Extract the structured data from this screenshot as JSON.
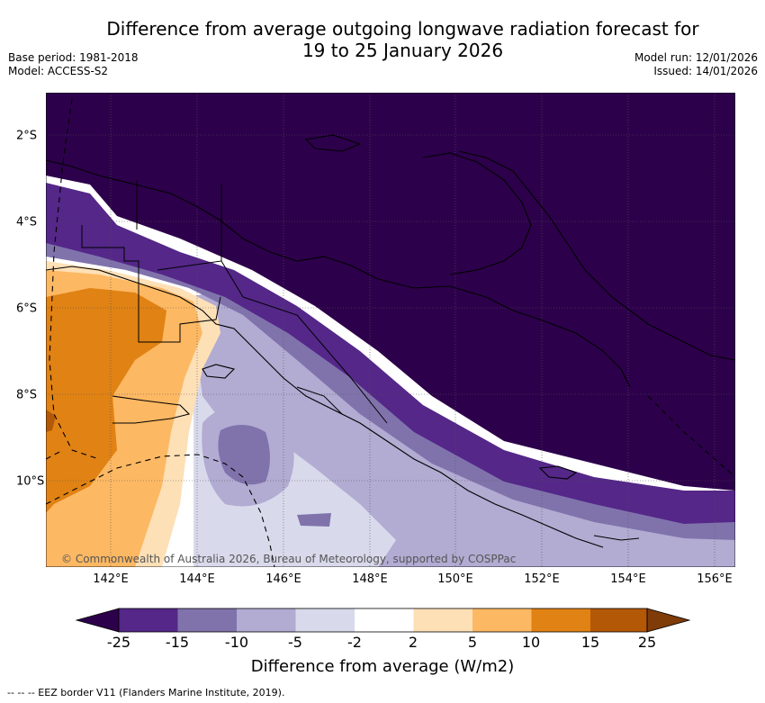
{
  "header": {
    "title_line1": "Difference from average outgoing longwave radiation forecast for",
    "title_line2": "19 to 25 January 2026",
    "base_period": "Base period: 1981-2018",
    "model": "Model: ACCESS-S2",
    "model_run": "Model run: 12/01/2026",
    "issued": "Issued: 14/01/2026"
  },
  "map": {
    "lon_labels": [
      "142°E",
      "144°E",
      "146°E",
      "148°E",
      "150°E",
      "152°E",
      "154°E",
      "156°E"
    ],
    "lat_labels": [
      "2°S",
      "4°S",
      "6°S",
      "8°S",
      "10°S"
    ],
    "copyright": "© Commonwealth of Australia 2026, Bureau of Meteorology, supported by COSPPac"
  },
  "legend": {
    "ticks": [
      "-25",
      "-15",
      "-10",
      "-5",
      "-2",
      "2",
      "5",
      "10",
      "15",
      "25"
    ],
    "colors": [
      "#2d004b",
      "#542788",
      "#8073ac",
      "#b2abd2",
      "#d8daeb",
      "#ffffff",
      "#fee0b6",
      "#fdb863",
      "#e08214",
      "#b35806",
      "#7f3b08"
    ],
    "title": "Difference from average (W/m2)"
  },
  "footer": {
    "eez_note": "--  --  -- EEZ border V11 (Flanders Marine Institute, 2019)."
  }
}
